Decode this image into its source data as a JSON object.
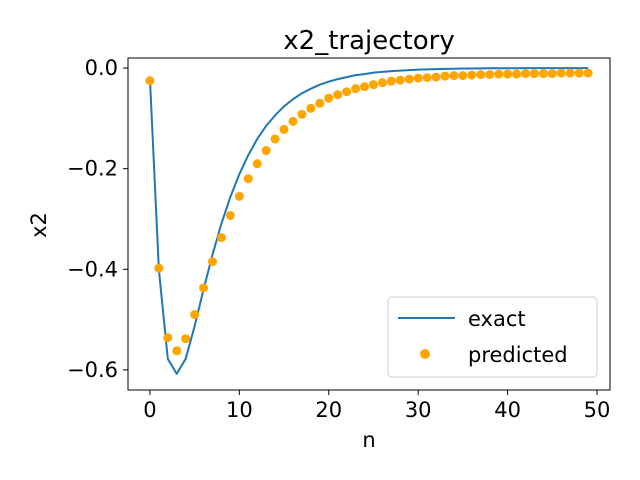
{
  "chart_data": {
    "type": "line",
    "title": "x2_trajectory",
    "xlabel": "n",
    "ylabel": "x2",
    "xlim": [
      -2.45,
      51.45
    ],
    "ylim": [
      -0.64,
      0.02
    ],
    "grid": false,
    "legend_placement": "lower-right",
    "x_ticks": [
      {
        "value": 0,
        "label": "0"
      },
      {
        "value": 10,
        "label": "10"
      },
      {
        "value": 20,
        "label": "20"
      },
      {
        "value": 30,
        "label": "30"
      },
      {
        "value": 40,
        "label": "40"
      },
      {
        "value": 50,
        "label": "50"
      }
    ],
    "y_ticks": [
      {
        "value": 0.0,
        "label": "0.0"
      },
      {
        "value": -0.2,
        "label": "−0.2"
      },
      {
        "value": -0.4,
        "label": "−0.4"
      },
      {
        "value": -0.6,
        "label": "−0.6"
      }
    ],
    "x": [
      0,
      1,
      2,
      3,
      4,
      5,
      6,
      7,
      8,
      9,
      10,
      11,
      12,
      13,
      14,
      15,
      16,
      17,
      18,
      19,
      20,
      21,
      22,
      23,
      24,
      25,
      26,
      27,
      28,
      29,
      30,
      31,
      32,
      33,
      34,
      35,
      36,
      37,
      38,
      39,
      40,
      41,
      42,
      43,
      44,
      45,
      46,
      47,
      48,
      49
    ],
    "series": [
      {
        "name": "exact",
        "kind": "line",
        "color": "#1f77b4",
        "values": [
          -0.02,
          -0.4,
          -0.578,
          -0.608,
          -0.578,
          -0.513,
          -0.44,
          -0.371,
          -0.309,
          -0.256,
          -0.211,
          -0.173,
          -0.141,
          -0.115,
          -0.094,
          -0.076,
          -0.062,
          -0.05,
          -0.041,
          -0.033,
          -0.027,
          -0.022,
          -0.018,
          -0.014,
          -0.012,
          -0.009,
          -0.0075,
          -0.006,
          -0.005,
          -0.004,
          -0.0032,
          -0.0026,
          -0.002,
          -0.0017,
          -0.0013,
          -0.001,
          -0.0008,
          -0.0007,
          -0.0005,
          -0.0004,
          -0.0003,
          -0.0003,
          -0.0002,
          -0.0002,
          -0.0001,
          -0.0001,
          -0.0001,
          -0.0001,
          -0.0001,
          0.0
        ]
      },
      {
        "name": "predicted",
        "kind": "scatter",
        "color": "#ffa500",
        "values": [
          -0.025,
          -0.398,
          -0.536,
          -0.562,
          -0.538,
          -0.49,
          -0.437,
          -0.385,
          -0.337,
          -0.293,
          -0.255,
          -0.22,
          -0.19,
          -0.164,
          -0.141,
          -0.122,
          -0.106,
          -0.092,
          -0.08,
          -0.07,
          -0.06,
          -0.053,
          -0.047,
          -0.041,
          -0.037,
          -0.033,
          -0.029,
          -0.026,
          -0.024,
          -0.022,
          -0.02,
          -0.019,
          -0.018,
          -0.016,
          -0.015,
          -0.015,
          -0.014,
          -0.013,
          -0.013,
          -0.012,
          -0.012,
          -0.012,
          -0.011,
          -0.011,
          -0.011,
          -0.011,
          -0.01,
          -0.01,
          -0.01,
          -0.01
        ]
      }
    ]
  }
}
